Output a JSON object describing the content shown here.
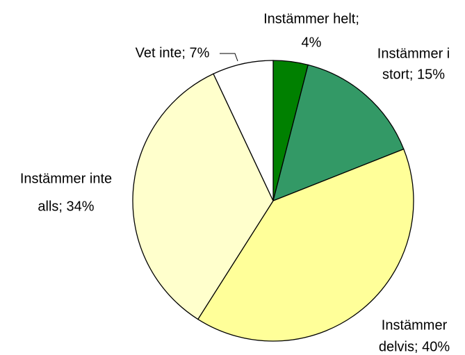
{
  "chart_data": {
    "type": "pie",
    "values": [
      4,
      15,
      40,
      34,
      7
    ],
    "value_labels": [
      [
        "Instämmer helt;",
        "4%"
      ],
      [
        "Instämmer i",
        "stort; 15%"
      ],
      [
        "Instämmer",
        "delvis; 40%"
      ],
      [
        "Instämmer inte",
        "alls; 34%"
      ],
      [
        "Vet inte; 7%"
      ]
    ],
    "colors": [
      "#008000",
      "#339966",
      "#ffff99",
      "#ffffcc",
      "#ffffff"
    ]
  }
}
